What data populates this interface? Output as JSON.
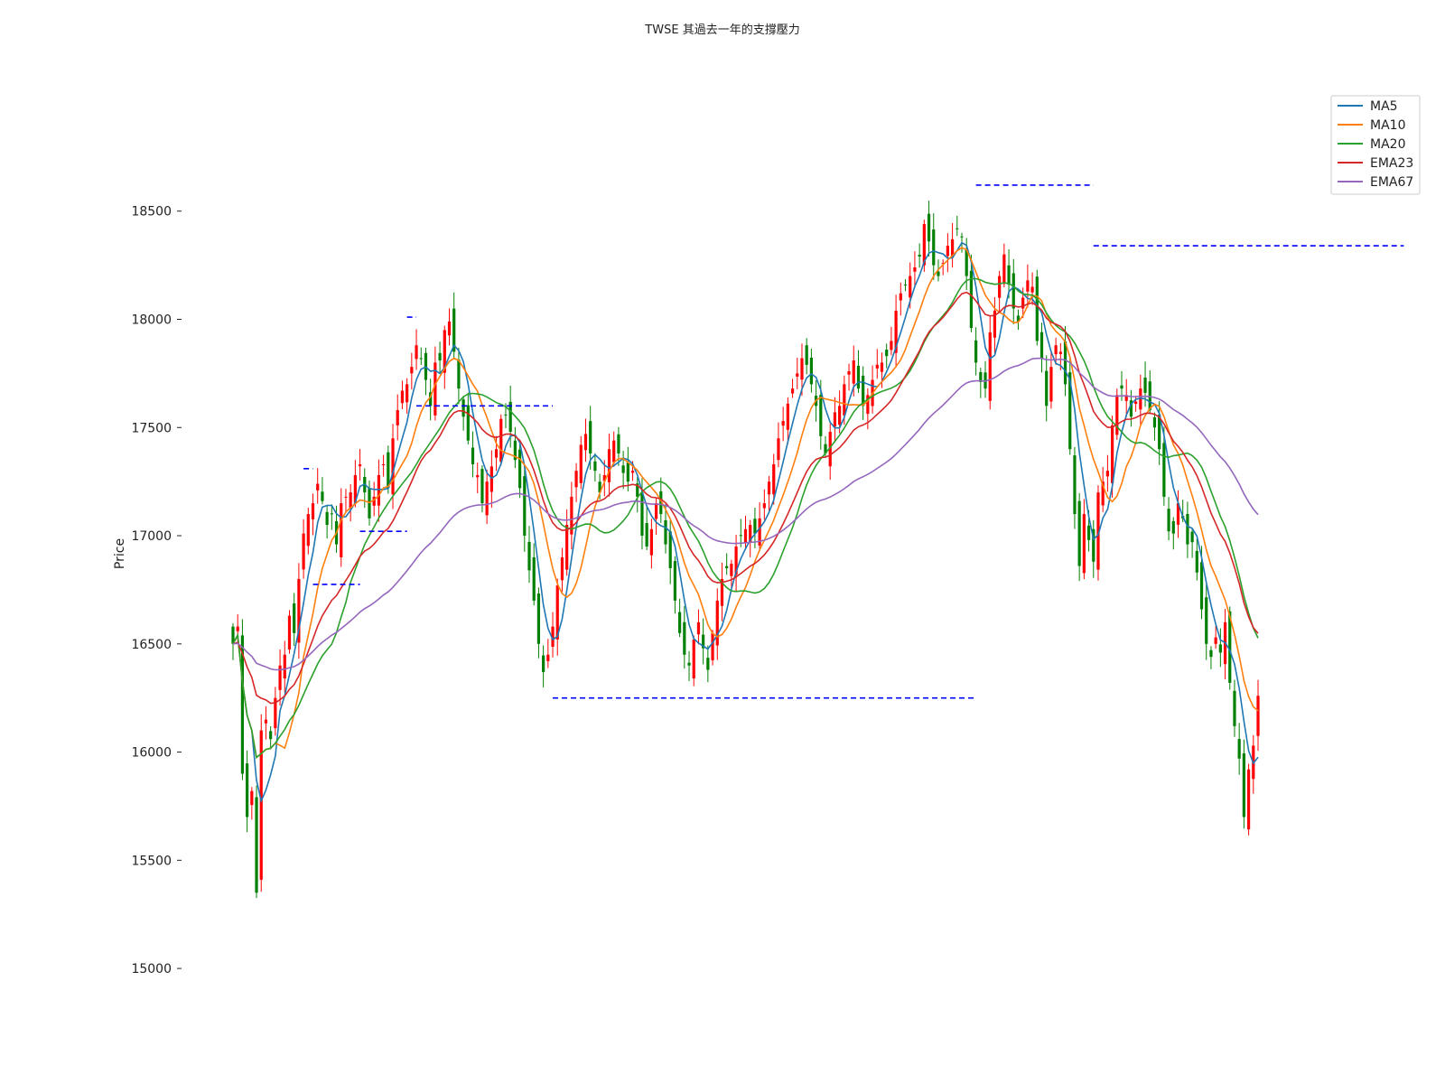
{
  "chart_data": {
    "type": "candlestick",
    "title": "TWSE 其過去一年的支撐壓力",
    "ylabel": "Price",
    "xlabel": "",
    "ylim": [
      14800,
      19100
    ],
    "yticks": [
      15000,
      15500,
      16000,
      16500,
      17000,
      17500,
      18000,
      18500
    ],
    "grid": false,
    "legend_position": "top-right",
    "up_color": "#ff0000",
    "down_color": "#008000",
    "close": [
      16500,
      16580,
      15900,
      15700,
      15820,
      15350,
      16100,
      16150,
      16060,
      16250,
      16400,
      16450,
      16630,
      16550,
      16800,
      17010,
      17100,
      17150,
      17240,
      17160,
      17050,
      17100,
      16960,
      17150,
      17180,
      17200,
      17280,
      17330,
      17200,
      17080,
      17180,
      17280,
      17330,
      17220,
      17450,
      17580,
      17670,
      17700,
      17780,
      17880,
      17820,
      17720,
      17600,
      17800,
      17810,
      17950,
      17990,
      17850,
      17680,
      17550,
      17440,
      17330,
      17280,
      17150,
      17250,
      17320,
      17400,
      17540,
      17560,
      17480,
      17350,
      17220,
      17000,
      16840,
      16700,
      16500,
      16370,
      16450,
      16580,
      16770,
      16900,
      17050,
      17180,
      17300,
      17420,
      17470,
      17380,
      17300,
      17200,
      17280,
      17400,
      17440,
      17380,
      17290,
      17250,
      17300,
      17180,
      17000,
      16950,
      17030,
      17150,
      17100,
      16960,
      16850,
      16700,
      16550,
      16450,
      16400,
      16520,
      16600,
      16480,
      16380,
      16550,
      16700,
      16800,
      16850,
      16870,
      16950,
      17000,
      17030,
      17050,
      17010,
      17080,
      17150,
      17250,
      17330,
      17450,
      17530,
      17610,
      17680,
      17750,
      17820,
      17790,
      17700,
      17600,
      17460,
      17380,
      17480,
      17570,
      17600,
      17700,
      17760,
      17810,
      17680,
      17600,
      17650,
      17720,
      17790,
      17800,
      17830,
      17900,
      18040,
      18120,
      18160,
      18200,
      18240,
      18290,
      18440,
      18360,
      18250,
      18200,
      18260,
      18340,
      18370,
      18420,
      18380,
      18200,
      17960,
      17800,
      17710,
      17680,
      17940,
      18040,
      18200,
      18300,
      18160,
      18050,
      17990,
      18100,
      18180,
      18150,
      17900,
      17820,
      17600,
      17780,
      17880,
      17850,
      17700,
      17400,
      17100,
      16860,
      17100,
      16980,
      16880,
      17200,
      17250,
      17300,
      17510,
      17650,
      17680,
      17650,
      17550,
      17620,
      17680,
      17660,
      17580,
      17500,
      17400,
      17180,
      17020,
      17010,
      17150,
      17080,
      16960,
      16970,
      16830,
      16660,
      16500,
      16440,
      16530,
      16460,
      16600,
      16320,
      16120,
      15970,
      15700,
      15920,
      16030,
      16260
    ]
  },
  "overlays": {
    "series": [
      {
        "name": "MA5",
        "color": "#1f77b4"
      },
      {
        "name": "MA10",
        "color": "#ff7f0e"
      },
      {
        "name": "MA20",
        "color": "#2ca02c"
      },
      {
        "name": "EMA23",
        "color": "#d62728"
      },
      {
        "name": "EMA67",
        "color": "#9467bd"
      }
    ],
    "levels_color": "#0000ff",
    "levels": [
      {
        "y": 18620,
        "from": 158,
        "to": 183
      },
      {
        "y": 18340,
        "from": 183,
        "to": 249
      },
      {
        "y": 18010,
        "from": 37,
        "to": 39
      },
      {
        "y": 17600,
        "from": 39,
        "to": 68
      },
      {
        "y": 17310,
        "from": 15,
        "to": 17
      },
      {
        "y": 17020,
        "from": 27,
        "to": 37
      },
      {
        "y": 16775,
        "from": 17,
        "to": 27
      },
      {
        "y": 16250,
        "from": 68,
        "to": 158
      }
    ]
  }
}
